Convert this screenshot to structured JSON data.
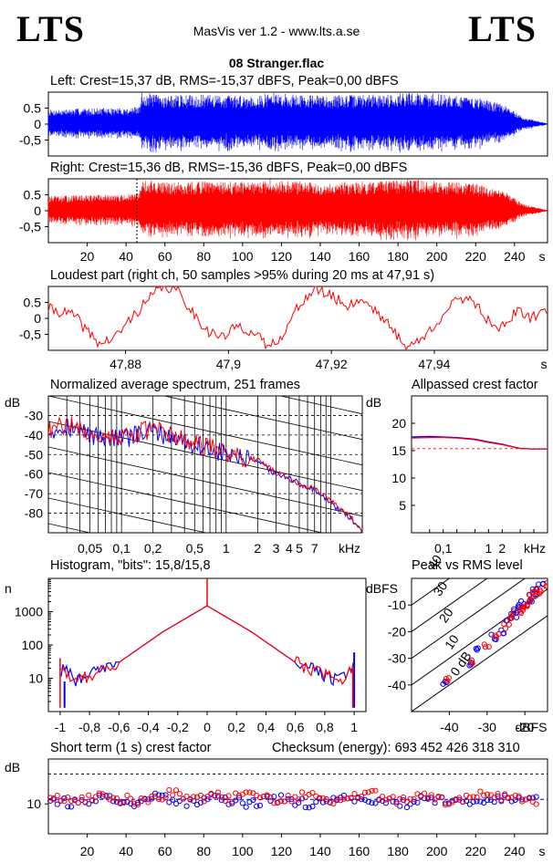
{
  "header": {
    "logo_left": "LTS",
    "logo_right": "LTS",
    "app": "MasVis ver 1.2 - www.lts.a.se",
    "filename": "08 Stranger.flac"
  },
  "colors": {
    "left": "#0000ff",
    "right": "#ff0000",
    "grid": "#000000"
  },
  "panels": {
    "left_wave": {
      "caption": "Left: Crest=15,37 dB, RMS=-15,37 dBFS, Peak=0,00 dBFS",
      "yticks": [
        "0.5",
        "0",
        "-0,5"
      ]
    },
    "right_wave": {
      "caption": "Right: Crest=15,36 dB, RMS=-15,36 dBFS, Peak=0,00 dBFS",
      "yticks": [
        "0.5",
        "0",
        "-0,5"
      ],
      "xticks": [
        "20",
        "40",
        "60",
        "80",
        "100",
        "120",
        "140",
        "160",
        "180",
        "200",
        "220",
        "240"
      ],
      "xunit": "s"
    },
    "loudest": {
      "caption": "Loudest part (right ch, 50 samples >95% during 20 ms at 47,91 s)",
      "yticks": [
        "0.5",
        "0",
        "-0,5"
      ],
      "xticks": [
        "47,88",
        "47,9",
        "47,92",
        "47,94"
      ],
      "xunit": "s"
    },
    "spectrum": {
      "caption": "Normalized average spectrum, 251 frames",
      "yunit": "dB",
      "yticks": [
        "-30",
        "-40",
        "-50",
        "-60",
        "-70",
        "-80"
      ],
      "xticks": [
        "0,05",
        "0,1",
        "0,2",
        "0,5",
        "1",
        "2",
        "3",
        "4",
        "5",
        "7"
      ],
      "xunit": "kHz"
    },
    "crest_ap": {
      "caption": "Allpassed crest factor",
      "yunit": "dB",
      "yticks": [
        "20",
        "15",
        "10",
        "5"
      ],
      "xticks": [
        "0,1",
        "1",
        "2"
      ],
      "xunit": "kHz"
    },
    "histogram": {
      "caption": "Histogram, \"bits\": 15,8/15,8",
      "yunit": "n",
      "yticks": [
        "1000",
        "100",
        "10"
      ],
      "xticks": [
        "-1",
        "-0,8",
        "-0,6",
        "-0,4",
        "-0,2",
        "0",
        "0,2",
        "0,4",
        "0,6",
        "0,8",
        "1"
      ]
    },
    "peak_rms": {
      "caption": "Peak vs RMS level",
      "yunit": "dBFS",
      "yticks": [
        "-10",
        "-20",
        "-30",
        "-40"
      ],
      "xticks": [
        "-40",
        "-30",
        "-20"
      ],
      "xunit": "dBFS",
      "diag_labels": [
        "40",
        "30",
        "20",
        "10",
        "0 dB"
      ]
    },
    "short_term": {
      "caption": "Short term (1 s) crest factor",
      "checksum": "Checksum (energy):   693 452 426 318 310",
      "yunit": "dB",
      "yticks": [
        "10"
      ],
      "xticks": [
        "20",
        "40",
        "60",
        "80",
        "100",
        "120",
        "140",
        "160",
        "180",
        "200",
        "220",
        "240"
      ],
      "xunit": "s"
    }
  },
  "chart_data": [
    {
      "type": "area",
      "title": "Left: Crest=15,37 dB, RMS=-15,37 dBFS, Peak=0,00 dBFS",
      "xlabel": "",
      "ylabel": "",
      "xlim": [
        0,
        257
      ],
      "ylim": [
        -1,
        1
      ],
      "series": [
        {
          "name": "Left",
          "x": [
            0,
            20,
            40,
            47,
            48,
            60,
            80,
            100,
            110,
            114,
            120,
            140,
            160,
            180,
            182,
            200,
            220,
            235,
            245,
            257
          ],
          "values": [
            0.45,
            0.5,
            0.5,
            0.55,
            1.0,
            0.9,
            0.92,
            0.9,
            0.9,
            1.0,
            0.95,
            0.9,
            0.92,
            0.95,
            1.0,
            0.95,
            0.85,
            0.6,
            0.2,
            0.02
          ]
        }
      ]
    },
    {
      "type": "area",
      "title": "Right: Crest=15,36 dB, RMS=-15,36 dBFS, Peak=0,00 dBFS",
      "xlabel": "s",
      "ylabel": "",
      "xlim": [
        0,
        257
      ],
      "ylim": [
        -1,
        1
      ],
      "series": [
        {
          "name": "Right",
          "x": [
            0,
            20,
            40,
            47,
            48,
            60,
            80,
            100,
            110,
            114,
            120,
            140,
            160,
            180,
            182,
            200,
            220,
            235,
            245,
            257
          ],
          "values": [
            0.45,
            0.5,
            0.5,
            0.55,
            1.0,
            0.9,
            0.92,
            0.9,
            0.9,
            1.0,
            0.95,
            0.9,
            0.92,
            0.95,
            1.0,
            0.95,
            0.85,
            0.6,
            0.2,
            0.02
          ]
        }
      ]
    },
    {
      "type": "line",
      "title": "Loudest part (right ch, 50 samples >95% during 20 ms at 47,91 s)",
      "xlabel": "s",
      "ylabel": "",
      "xlim": [
        47.865,
        47.962
      ],
      "ylim": [
        -1,
        1
      ],
      "series": [
        {
          "name": "Right",
          "x": [
            47.865,
            47.87,
            47.872,
            47.875,
            47.878,
            47.881,
            47.884,
            47.887,
            47.89,
            47.893,
            47.896,
            47.899,
            47.902,
            47.905,
            47.908,
            47.911,
            47.914,
            47.917,
            47.92,
            47.923,
            47.926,
            47.929,
            47.932,
            47.935,
            47.938,
            47.941,
            47.944,
            47.947,
            47.95,
            47.953,
            47.956,
            47.959,
            47.962
          ],
          "values": [
            0.3,
            0.1,
            -0.3,
            -0.8,
            -0.6,
            0.0,
            0.5,
            1.0,
            0.9,
            0.2,
            -0.4,
            -0.6,
            -0.2,
            -0.5,
            -0.9,
            -0.4,
            0.5,
            0.9,
            0.7,
            0.4,
            0.6,
            0.2,
            -0.4,
            -0.9,
            -0.6,
            0.0,
            0.5,
            0.7,
            0.0,
            -0.3,
            0.2,
            0.0,
            0.3
          ]
        }
      ]
    },
    {
      "type": "line",
      "title": "Normalized average spectrum, 251 frames",
      "xlabel": "kHz",
      "ylabel": "dB",
      "xlim": [
        0.02,
        20
      ],
      "ylim": [
        -90,
        -20
      ],
      "xscale": "log",
      "series": [
        {
          "name": "Left",
          "x": [
            0.02,
            0.03,
            0.05,
            0.1,
            0.2,
            0.5,
            1,
            2,
            3,
            4,
            5,
            7,
            10,
            15,
            20
          ],
          "values": [
            -38,
            -35,
            -40,
            -42,
            -38,
            -45,
            -50,
            -54,
            -60,
            -62,
            -65,
            -68,
            -75,
            -82,
            -90
          ]
        },
        {
          "name": "Right",
          "x": [
            0.02,
            0.03,
            0.05,
            0.1,
            0.2,
            0.5,
            1,
            2,
            3,
            4,
            5,
            7,
            10,
            15,
            20
          ],
          "values": [
            -38,
            -34,
            -39,
            -41,
            -37,
            -44,
            -49,
            -53,
            -59,
            -62,
            -66,
            -67,
            -74,
            -81,
            -90
          ]
        }
      ]
    },
    {
      "type": "line",
      "title": "Allpassed crest factor",
      "xlabel": "kHz",
      "ylabel": "dB",
      "xlim": [
        0.02,
        20
      ],
      "ylim": [
        0,
        25
      ],
      "xscale": "log",
      "series": [
        {
          "name": "Left",
          "x": [
            0.02,
            0.05,
            0.1,
            0.2,
            0.5,
            1,
            2,
            5,
            10,
            20
          ],
          "values": [
            17.5,
            17.6,
            17.5,
            17.4,
            17.1,
            16.6,
            16.2,
            15.4,
            15.3,
            15.3
          ]
        },
        {
          "name": "Right",
          "x": [
            0.02,
            0.05,
            0.1,
            0.2,
            0.5,
            1,
            2,
            5,
            10,
            20
          ],
          "values": [
            17.3,
            17.4,
            17.4,
            17.3,
            17.0,
            16.5,
            16.1,
            15.4,
            15.3,
            15.3
          ]
        },
        {
          "name": "Crest",
          "x": [
            0.02,
            20
          ],
          "values": [
            15.37,
            15.37
          ]
        }
      ]
    },
    {
      "type": "line",
      "title": "Histogram, \"bits\": 15,8/15,8",
      "xlabel": "",
      "ylabel": "n",
      "xlim": [
        -1.08,
        1.08
      ],
      "ylim": [
        1,
        10000
      ],
      "yscale": "log",
      "series": [
        {
          "name": "Left",
          "x": [
            -1,
            -0.99,
            -0.9,
            -0.6,
            -0.3,
            0,
            0.3,
            0.6,
            0.9,
            0.99,
            1
          ],
          "values": [
            2,
            30,
            8,
            30,
            250,
            1500,
            250,
            30,
            8,
            30,
            60
          ]
        },
        {
          "name": "Right",
          "x": [
            -1,
            -0.99,
            -0.9,
            -0.6,
            -0.3,
            0,
            0.3,
            0.6,
            0.9,
            0.99,
            1
          ],
          "values": [
            30,
            20,
            8,
            30,
            250,
            1500,
            250,
            30,
            8,
            25,
            20
          ]
        }
      ]
    },
    {
      "type": "scatter",
      "title": "Peak vs RMS level",
      "xlabel": "dBFS",
      "ylabel": "dBFS",
      "xlim": [
        -50,
        -14
      ],
      "ylim": [
        -50,
        0
      ],
      "series": [
        {
          "name": "Left",
          "x": [
            -41,
            -35,
            -32,
            -28,
            -26,
            -24,
            -23,
            -22,
            -21,
            -20,
            -19,
            -18,
            -17,
            -16
          ],
          "values": [
            -39,
            -32,
            -27,
            -22,
            -20,
            -16,
            -14,
            -12,
            -10,
            -9,
            -8,
            -6,
            -5,
            -3
          ]
        },
        {
          "name": "Right",
          "x": [
            -40,
            -34,
            -30,
            -27,
            -25,
            -24,
            -22,
            -21,
            -20,
            -19,
            -18,
            -17,
            -16,
            -15
          ],
          "values": [
            -38,
            -31,
            -25,
            -21,
            -18,
            -15,
            -13,
            -11,
            -10,
            -8,
            -6,
            -5,
            -4,
            -2
          ]
        }
      ]
    },
    {
      "type": "scatter",
      "title": "Short term (1 s) crest factor",
      "xlabel": "s",
      "ylabel": "dB",
      "xlim": [
        0,
        257
      ],
      "ylim": [
        0,
        25
      ],
      "series": [
        {
          "name": "Left",
          "x": [
            5,
            15,
            25,
            35,
            45,
            55,
            65,
            75,
            85,
            95,
            105,
            115,
            125,
            135,
            145,
            155,
            165,
            175,
            185,
            195,
            205,
            215,
            225,
            235,
            245
          ],
          "values": [
            11,
            10,
            12,
            11,
            10,
            13,
            11,
            10,
            12,
            11,
            10,
            12,
            11,
            10,
            11,
            12,
            10,
            11,
            10,
            12,
            11,
            10,
            11,
            12,
            11
          ]
        },
        {
          "name": "Right",
          "x": [
            5,
            15,
            25,
            35,
            45,
            55,
            65,
            75,
            85,
            95,
            105,
            115,
            125,
            135,
            145,
            155,
            165,
            175,
            185,
            195,
            205,
            215,
            225,
            235,
            245
          ],
          "values": [
            12,
            11,
            13,
            12,
            11,
            12,
            14,
            11,
            13,
            12,
            15,
            11,
            12,
            13,
            11,
            12,
            14,
            11,
            12,
            13,
            11,
            12,
            13,
            12,
            11
          ]
        }
      ]
    }
  ]
}
